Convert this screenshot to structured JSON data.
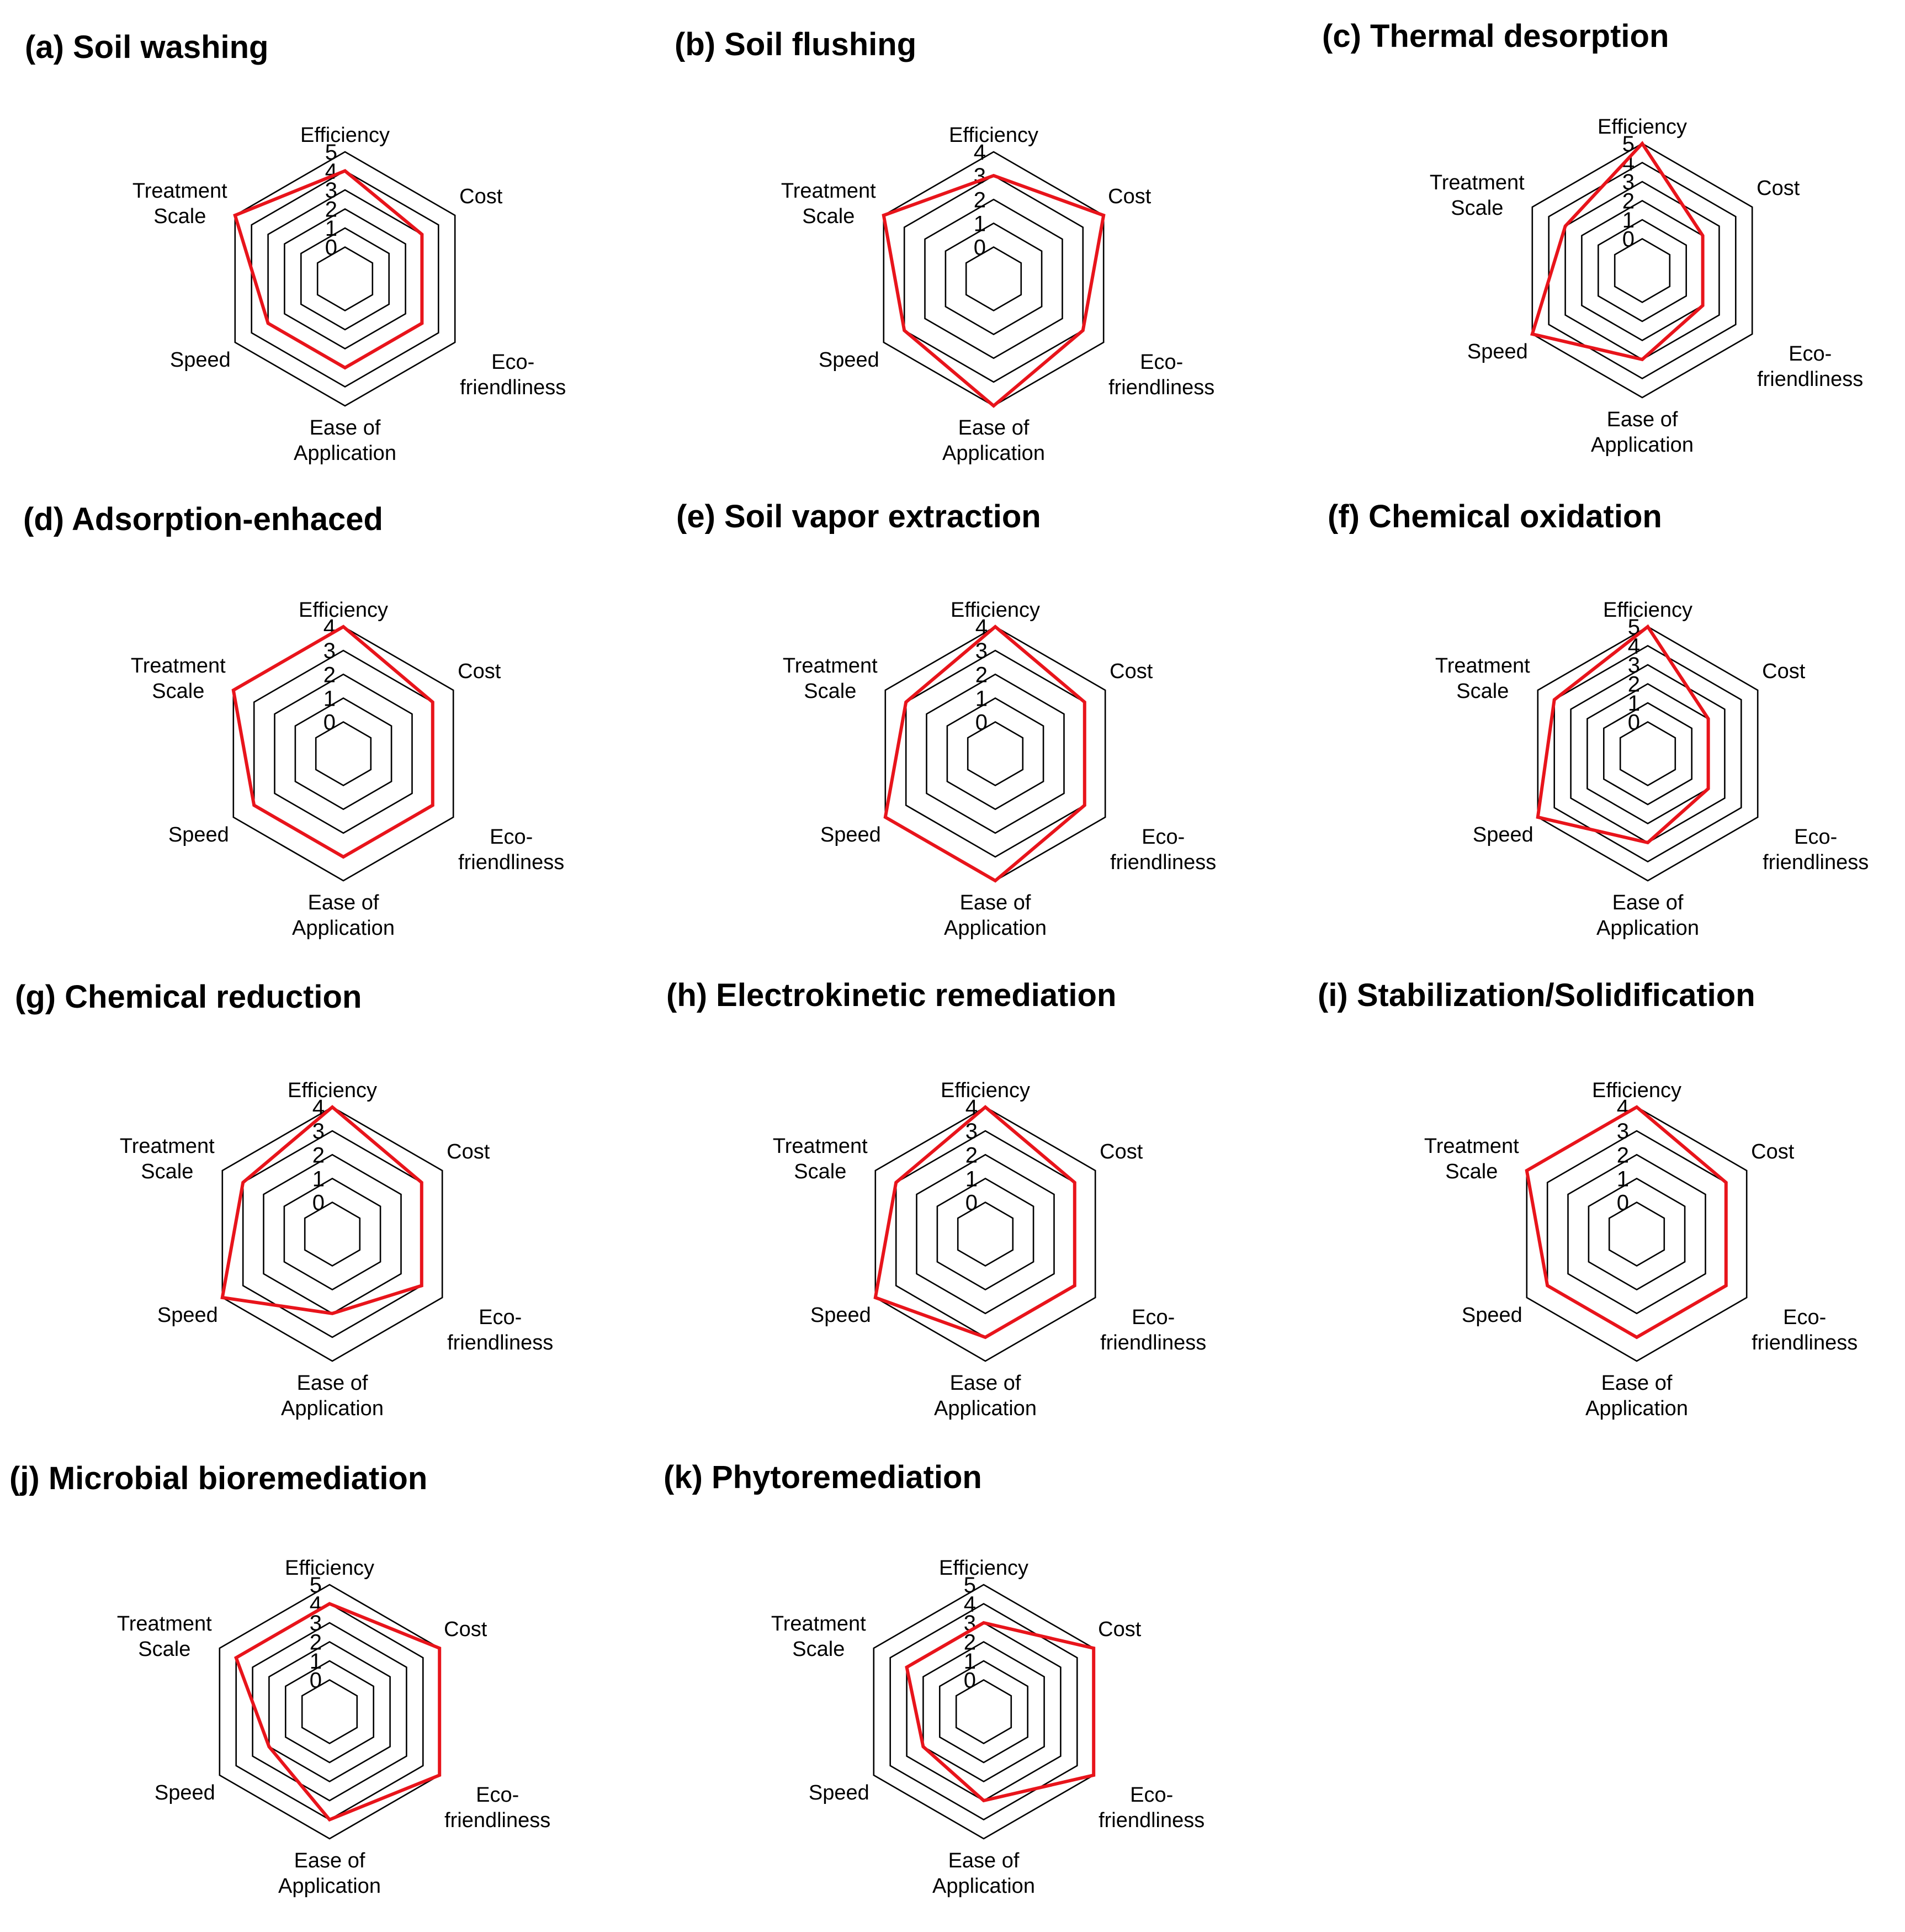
{
  "chart_data": [
    {
      "type": "radar",
      "title": "(a) Soil washing",
      "axes": [
        "Efficiency",
        "Cost",
        "Eco-friendliness",
        "Ease of Application",
        "Speed",
        "Treatment Scale"
      ],
      "axis_label_lines": [
        [
          "Efficiency"
        ],
        [
          "Cost"
        ],
        [
          "Eco-",
          "friendliness"
        ],
        [
          "Ease of",
          "Application"
        ],
        [
          "Speed"
        ],
        [
          "Treatment",
          "Scale"
        ]
      ],
      "ticks": [
        "0",
        "1",
        "2",
        "3",
        "4",
        "5"
      ],
      "rmax": 5,
      "values": [
        4,
        3,
        3,
        3,
        3,
        5
      ]
    },
    {
      "type": "radar",
      "title": "(b) Soil flushing",
      "axes": [
        "Efficiency",
        "Cost",
        "Eco-friendliness",
        "Ease of Application",
        "Speed",
        "Treatment Scale"
      ],
      "axis_label_lines": [
        [
          "Efficiency"
        ],
        [
          "Cost"
        ],
        [
          "Eco-",
          "friendliness"
        ],
        [
          "Ease of",
          "Application"
        ],
        [
          "Speed"
        ],
        [
          "Treatment",
          "Scale"
        ]
      ],
      "ticks": [
        "0",
        "1",
        "2",
        "3",
        "4"
      ],
      "rmax": 4,
      "values": [
        3,
        4,
        3,
        4,
        3,
        4
      ]
    },
    {
      "type": "radar",
      "title": "(c) Thermal desorption",
      "axes": [
        "Efficiency",
        "Cost",
        "Eco-friendliness",
        "Ease of Application",
        "Speed",
        "Treatment Scale"
      ],
      "axis_label_lines": [
        [
          "Efficiency"
        ],
        [
          "Cost"
        ],
        [
          "Eco-",
          "friendliness"
        ],
        [
          "Ease of",
          "Application"
        ],
        [
          "Speed"
        ],
        [
          "Treatment",
          "Scale"
        ]
      ],
      "ticks": [
        "0",
        "1",
        "2",
        "3",
        "4",
        "5"
      ],
      "rmax": 5,
      "values": [
        5,
        2,
        2,
        3,
        5,
        3
      ]
    },
    {
      "type": "radar",
      "title": "(d) Adsorption-enhaced",
      "axes": [
        "Efficiency",
        "Cost",
        "Eco-friendliness",
        "Ease of Application",
        "Speed",
        "Treatment Scale"
      ],
      "axis_label_lines": [
        [
          "Efficiency"
        ],
        [
          "Cost"
        ],
        [
          "Eco-",
          "friendliness"
        ],
        [
          "Ease of",
          "Application"
        ],
        [
          "Speed"
        ],
        [
          "Treatment",
          "Scale"
        ]
      ],
      "ticks": [
        "0",
        "1",
        "2",
        "3",
        "4"
      ],
      "rmax": 4,
      "values": [
        4,
        3,
        3,
        3,
        3,
        4
      ]
    },
    {
      "type": "radar",
      "title": "(e) Soil vapor extraction",
      "axes": [
        "Efficiency",
        "Cost",
        "Eco-friendliness",
        "Ease of Application",
        "Speed",
        "Treatment Scale"
      ],
      "axis_label_lines": [
        [
          "Efficiency"
        ],
        [
          "Cost"
        ],
        [
          "Eco-",
          "friendliness"
        ],
        [
          "Ease of",
          "Application"
        ],
        [
          "Speed"
        ],
        [
          "Treatment",
          "Scale"
        ]
      ],
      "ticks": [
        "0",
        "1",
        "2",
        "3",
        "4"
      ],
      "rmax": 4,
      "values": [
        4,
        3,
        3,
        4,
        4,
        3
      ]
    },
    {
      "type": "radar",
      "title": "(f) Chemical oxidation",
      "axes": [
        "Efficiency",
        "Cost",
        "Eco-friendliness",
        "Ease of Application",
        "Speed",
        "Treatment Scale"
      ],
      "axis_label_lines": [
        [
          "Efficiency"
        ],
        [
          "Cost"
        ],
        [
          "Eco-",
          "friendliness"
        ],
        [
          "Ease of",
          "Application"
        ],
        [
          "Speed"
        ],
        [
          "Treatment",
          "Scale"
        ]
      ],
      "ticks": [
        "0",
        "1",
        "2",
        "3",
        "4",
        "5"
      ],
      "rmax": 5,
      "values": [
        5,
        2,
        2,
        3,
        5,
        4
      ]
    },
    {
      "type": "radar",
      "title": "(g) Chemical reduction",
      "axes": [
        "Efficiency",
        "Cost",
        "Eco-friendliness",
        "Ease of Application",
        "Speed",
        "Treatment Scale"
      ],
      "axis_label_lines": [
        [
          "Efficiency"
        ],
        [
          "Cost"
        ],
        [
          "Eco-",
          "friendliness"
        ],
        [
          "Ease of",
          "Application"
        ],
        [
          "Speed"
        ],
        [
          "Treatment",
          "Scale"
        ]
      ],
      "ticks": [
        "0",
        "1",
        "2",
        "3",
        "4"
      ],
      "rmax": 4,
      "values": [
        4,
        3,
        3,
        2,
        4,
        3
      ]
    },
    {
      "type": "radar",
      "title": "(h) Electrokinetic remediation",
      "axes": [
        "Efficiency",
        "Cost",
        "Eco-friendliness",
        "Ease of Application",
        "Speed",
        "Treatment Scale"
      ],
      "axis_label_lines": [
        [
          "Efficiency"
        ],
        [
          "Cost"
        ],
        [
          "Eco-",
          "friendliness"
        ],
        [
          "Ease of",
          "Application"
        ],
        [
          "Speed"
        ],
        [
          "Treatment",
          "Scale"
        ]
      ],
      "ticks": [
        "0",
        "1",
        "2",
        "3",
        "4"
      ],
      "rmax": 4,
      "values": [
        4,
        3,
        3,
        3,
        4,
        3
      ]
    },
    {
      "type": "radar",
      "title": "(i) Stabilization/Solidification",
      "axes": [
        "Efficiency",
        "Cost",
        "Eco-friendliness",
        "Ease of Application",
        "Speed",
        "Treatment Scale"
      ],
      "axis_label_lines": [
        [
          "Efficiency"
        ],
        [
          "Cost"
        ],
        [
          "Eco-",
          "friendliness"
        ],
        [
          "Ease of",
          "Application"
        ],
        [
          "Speed"
        ],
        [
          "Treatment",
          "Scale"
        ]
      ],
      "ticks": [
        "0",
        "1",
        "2",
        "3",
        "4"
      ],
      "rmax": 4,
      "values": [
        4,
        3,
        3,
        3,
        3,
        4
      ]
    },
    {
      "type": "radar",
      "title": "(j) Microbial bioremediation",
      "axes": [
        "Efficiency",
        "Cost",
        "Eco-friendliness",
        "Ease of Application",
        "Speed",
        "Treatment Scale"
      ],
      "axis_label_lines": [
        [
          "Efficiency"
        ],
        [
          "Cost"
        ],
        [
          "Eco-",
          "friendliness"
        ],
        [
          "Ease of",
          "Application"
        ],
        [
          "Speed"
        ],
        [
          "Treatment",
          "Scale"
        ]
      ],
      "ticks": [
        "0",
        "1",
        "2",
        "3",
        "4",
        "5"
      ],
      "rmax": 5,
      "values": [
        4,
        5,
        5,
        4,
        2,
        4
      ]
    },
    {
      "type": "radar",
      "title": "(k) Phytoremediation",
      "axes": [
        "Efficiency",
        "Cost",
        "Eco-friendliness",
        "Ease of Application",
        "Speed",
        "Treatment Scale"
      ],
      "axis_label_lines": [
        [
          "Efficiency"
        ],
        [
          "Cost"
        ],
        [
          "Eco-",
          "friendliness"
        ],
        [
          "Ease of",
          "Application"
        ],
        [
          "Speed"
        ],
        [
          "Treatment",
          "Scale"
        ]
      ],
      "ticks": [
        "0",
        "1",
        "2",
        "3",
        "4",
        "5"
      ],
      "rmax": 5,
      "values": [
        3,
        5,
        5,
        3,
        2,
        3
      ]
    }
  ],
  "colors": {
    "series": "#e8141b",
    "grid": "#000000"
  }
}
